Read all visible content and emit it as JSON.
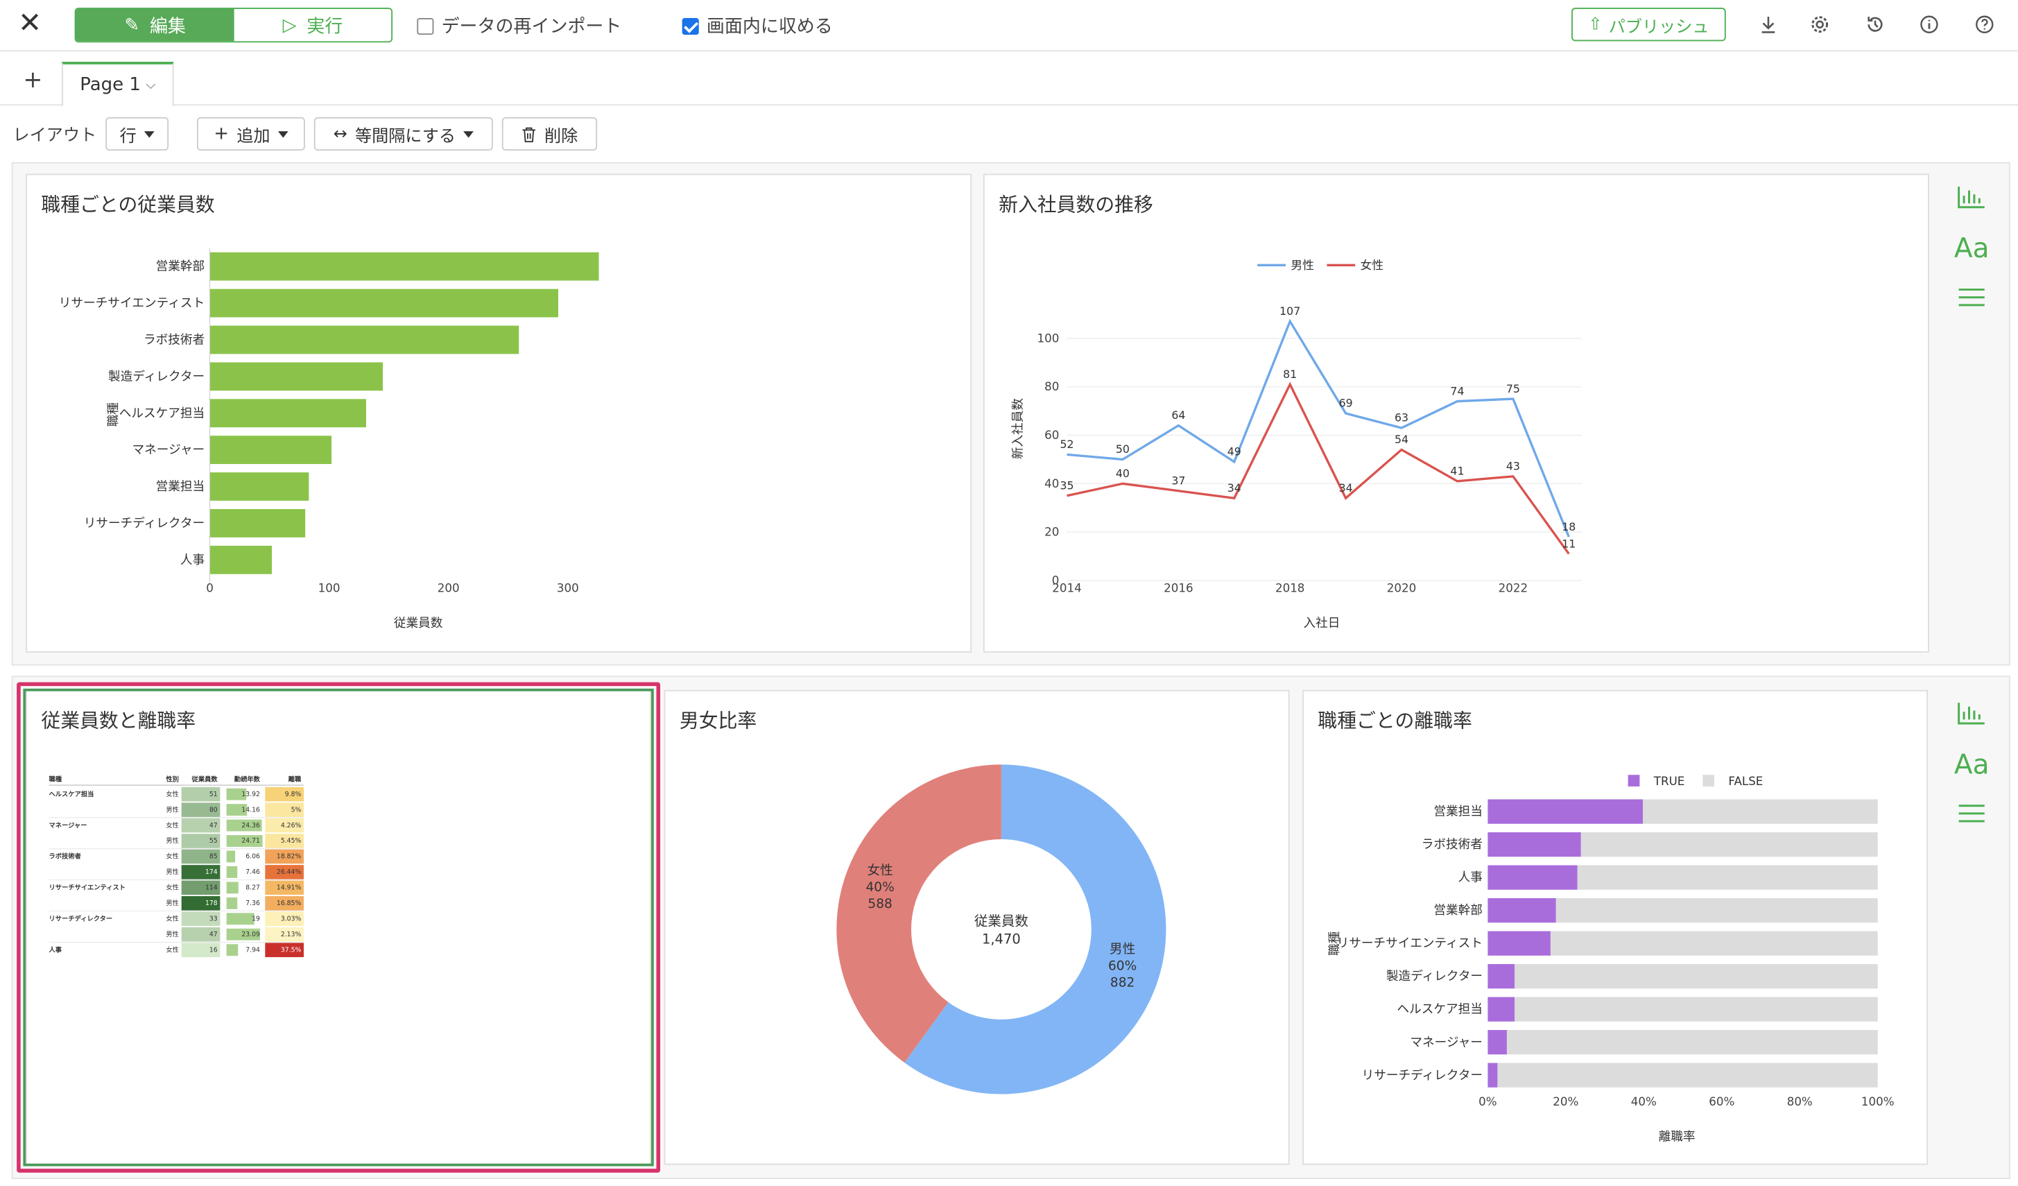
{
  "topbar": {
    "edit_label": "編集",
    "run_label": "実行",
    "reimport_label": "データの再インポート",
    "fit_label": "画面内に収める",
    "publish_label": "パブリッシュ"
  },
  "tabs": {
    "page_label": "Page 1"
  },
  "toolbar": {
    "layout_label": "レイアウト",
    "row_label": "行",
    "add_label": "追加",
    "equal_label": "等間隔にする",
    "delete_label": "削除"
  },
  "panels": {
    "bar_title": "職種ごとの従業員数",
    "line_title": "新入社員数の推移",
    "table_title": "従業員数と離職率",
    "pie_title": "男女比率",
    "stack_title": "職種ごとの離職率"
  },
  "side": {
    "font_label": "Aa"
  },
  "chart_data": [
    {
      "type": "bar",
      "title": "職種ごとの従業員数",
      "xlabel": "従業員数",
      "ylabel": "職種",
      "orientation": "horizontal",
      "categories": [
        "営業幹部",
        "リサーチサイエンティスト",
        "ラボ技術者",
        "製造ディレクター",
        "ヘルスケア担当",
        "マネージャー",
        "営業担当",
        "リサーチディレクター",
        "人事"
      ],
      "values": [
        326,
        292,
        259,
        145,
        131,
        102,
        83,
        80,
        52
      ],
      "xticks": [
        0,
        100,
        200,
        300
      ],
      "xlim": [
        0,
        330
      ],
      "color": "#8bc34a"
    },
    {
      "type": "line",
      "title": "新入社員数の推移",
      "xlabel": "入社日",
      "ylabel": "新入社員数",
      "x": [
        2014,
        2015,
        2016,
        2017,
        2018,
        2019,
        2020,
        2021,
        2022,
        2023
      ],
      "xticks": [
        2014,
        2016,
        2018,
        2020,
        2022
      ],
      "yticks": [
        0,
        20,
        40,
        60,
        80,
        100
      ],
      "ylim": [
        0,
        110
      ],
      "legend_position": "top",
      "series": [
        {
          "name": "男性",
          "color": "#6fa8e8",
          "values": [
            52,
            50,
            64,
            49,
            107,
            69,
            63,
            74,
            75,
            18
          ]
        },
        {
          "name": "女性",
          "color": "#d9534f",
          "values": [
            35,
            40,
            37,
            34,
            81,
            34,
            54,
            41,
            43,
            11
          ]
        }
      ]
    },
    {
      "type": "table",
      "title": "従業員数と離職率",
      "columns": [
        "職種",
        "性別",
        "従業員数",
        "勤続年数",
        "離職"
      ],
      "rows": [
        {
          "job": "ヘルスケア担当",
          "gender": "女性",
          "count": "51",
          "tenure": "13.92",
          "rate": "9.8%",
          "count_level": 0.25,
          "tenure_level": 0.55,
          "rate_color": "#f7d277"
        },
        {
          "job": "",
          "gender": "男性",
          "count": "80",
          "tenure": "14.16",
          "rate": "5%",
          "count_level": 0.4,
          "tenure_level": 0.57,
          "rate_color": "#fbe7a0"
        },
        {
          "job": "マネージャー",
          "gender": "女性",
          "count": "47",
          "tenure": "24.36",
          "rate": "4.26%",
          "count_level": 0.22,
          "tenure_level": 0.98,
          "rate_color": "#fcecac"
        },
        {
          "job": "",
          "gender": "男性",
          "count": "55",
          "tenure": "24.71",
          "rate": "5.45%",
          "count_level": 0.27,
          "tenure_level": 1.0,
          "rate_color": "#fbe6a0"
        },
        {
          "job": "ラボ技術者",
          "gender": "女性",
          "count": "85",
          "tenure": "6.06",
          "rate": "18.82%",
          "count_level": 0.45,
          "tenure_level": 0.24,
          "rate_color": "#f1a35a"
        },
        {
          "job": "",
          "gender": "男性",
          "count": "174",
          "tenure": "7.46",
          "rate": "26.44%",
          "count_level": 0.97,
          "tenure_level": 0.3,
          "rate_color": "#e7733b"
        },
        {
          "job": "リサーチサイエンティスト",
          "gender": "女性",
          "count": "114",
          "tenure": "8.27",
          "rate": "14.91%",
          "count_level": 0.62,
          "tenure_level": 0.33,
          "rate_color": "#f4b865"
        },
        {
          "job": "",
          "gender": "男性",
          "count": "178",
          "tenure": "7.36",
          "rate": "16.85%",
          "count_level": 1.0,
          "tenure_level": 0.3,
          "rate_color": "#f2ad5f"
        },
        {
          "job": "リサーチディレクター",
          "gender": "女性",
          "count": "33",
          "tenure": "19",
          "rate": "3.03%",
          "count_level": 0.15,
          "tenure_level": 0.77,
          "rate_color": "#fdf0b8"
        },
        {
          "job": "",
          "gender": "男性",
          "count": "47",
          "tenure": "23.09",
          "rate": "2.13%",
          "count_level": 0.22,
          "tenure_level": 0.93,
          "rate_color": "#fdf3c3"
        },
        {
          "job": "人事",
          "gender": "女性",
          "count": "16",
          "tenure": "7.94",
          "rate": "37.5%",
          "count_level": 0.05,
          "tenure_level": 0.32,
          "rate_color": "#c9302c"
        }
      ]
    },
    {
      "type": "pie",
      "title": "男女比率",
      "center_label": "従業員数",
      "center_value": "1,470",
      "slices": [
        {
          "name": "男性",
          "value": 882,
          "percent": "60%",
          "color": "#82b5f5"
        },
        {
          "name": "女性",
          "value": 588,
          "percent": "40%",
          "color": "#e0807a"
        }
      ]
    },
    {
      "type": "bar",
      "stacked": true,
      "orientation": "horizontal",
      "title": "職種ごとの離職率",
      "xlabel": "離職率",
      "ylabel": "職種",
      "categories": [
        "営業担当",
        "ラボ技術者",
        "人事",
        "営業幹部",
        "リサーチサイエンティスト",
        "製造ディレクター",
        "ヘルスケア担当",
        "マネージャー",
        "リサーチディレクター"
      ],
      "series": [
        {
          "name": "TRUE",
          "color": "#a96ddb",
          "values": [
            0.398,
            0.239,
            0.23,
            0.175,
            0.161,
            0.069,
            0.069,
            0.049,
            0.025
          ]
        },
        {
          "name": "FALSE",
          "color": "#dcdcdc",
          "values": [
            0.602,
            0.761,
            0.77,
            0.825,
            0.839,
            0.931,
            0.931,
            0.951,
            0.975
          ]
        }
      ],
      "xticks": [
        "0%",
        "20%",
        "40%",
        "60%",
        "80%",
        "100%"
      ],
      "legend_position": "top"
    }
  ]
}
